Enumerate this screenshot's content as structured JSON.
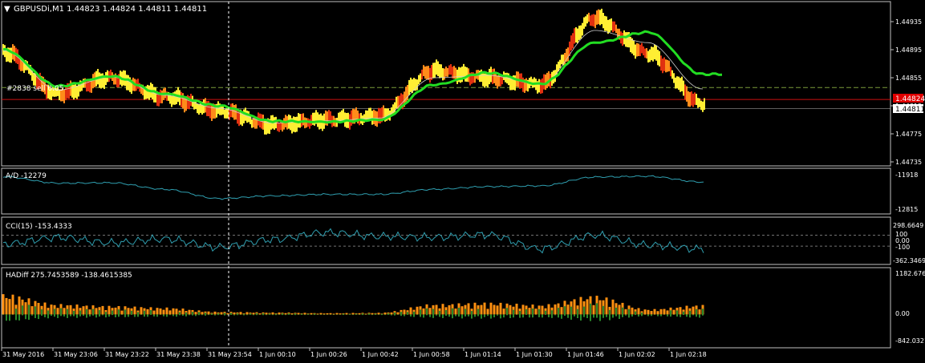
{
  "colors": {
    "background": "#000000",
    "frame": "#c0c0c0",
    "text": "#ffffff",
    "ma_green": "#22dd22",
    "candles_yellow": "#ffee33",
    "candles_orange": "#ff8c1a",
    "candles_red": "#e03010",
    "indicator_line": "#2f9fb0",
    "hist_orange": "#ff9010",
    "hist_green": "#2a8a2a",
    "price_line_red": "#cc1010",
    "price_tag_red": "#e00000",
    "order_line": "#7a9a3a"
  },
  "main": {
    "title_marker": "▼",
    "title": "GBPUSDi,M1  1.44823 1.44824 1.44811 1.44811",
    "order_label": "#2838 sell 0.05",
    "price_ticks": [
      "1.44935",
      "1.44895",
      "1.44855",
      "1.44815",
      "1.44775",
      "1.44735"
    ],
    "current_price_red": "1.44824",
    "current_price_white": "1.44811",
    "order_price": 1.44841
  },
  "ad": {
    "label": "A/D -12279",
    "ticks": [
      "-11918",
      "-12815"
    ]
  },
  "cci": {
    "label": "CCI(15) -153.4333",
    "ticks": [
      "298.6649",
      "100",
      "0.00",
      "-100",
      "-362.3469"
    ],
    "levels": [
      100,
      -100
    ]
  },
  "hadiff": {
    "label": "HADiff 275.7453589 -138.4615385",
    "ticks": [
      "1182.676",
      "0.00",
      "-842.0321"
    ]
  },
  "time_axis": {
    "labels": [
      "31 May 2016",
      "31 May 23:06",
      "31 May 23:22",
      "31 May 23:38",
      "31 May 23:54",
      "1 Jun 00:10",
      "1 Jun 00:26",
      "1 Jun 00:42",
      "1 Jun 00:58",
      "1 Jun 01:14",
      "1 Jun 01:30",
      "1 Jun 01:46",
      "1 Jun 02:02",
      "1 Jun 02:18"
    ]
  },
  "chart_data": [
    {
      "type": "line",
      "title": "GBPUSDi,M1  1.44823 1.44824 1.44811 1.44811",
      "x": [
        "31 May 2016",
        "31 May 23:06",
        "31 May 23:22",
        "31 May 23:38",
        "31 May 23:54",
        "1 Jun 00:10",
        "1 Jun 00:26",
        "1 Jun 00:42",
        "1 Jun 00:58",
        "1 Jun 01:14",
        "1 Jun 01:30",
        "1 Jun 01:46",
        "1 Jun 02:02",
        "1 Jun 02:18"
      ],
      "ylim": [
        1.44725,
        1.44955
      ],
      "series": [
        {
          "name": "",
          "values": [
            1.44892,
            1.44832,
            1.44855,
            1.44828,
            1.44808,
            1.44788,
            1.44795,
            1.448,
            1.44865,
            1.44855,
            1.44845,
            1.4494,
            1.4489,
            1.44818
          ]
        },
        {
          "name": "",
          "values": [
            1.44895,
            1.44843,
            1.44857,
            1.44832,
            1.44815,
            1.44793,
            1.44792,
            1.44795,
            1.44845,
            1.44862,
            1.44846,
            1.44905,
            1.4492,
            1.4486
          ]
        }
      ]
    },
    {
      "type": "line",
      "title": "A/D -12279",
      "x": [
        "31 May 2016",
        "31 May 23:06",
        "31 May 23:22",
        "31 May 23:38",
        "31 May 23:54",
        "1 Jun 00:10",
        "1 Jun 00:26",
        "1 Jun 00:42",
        "1 Jun 00:58",
        "1 Jun 01:14",
        "1 Jun 01:30",
        "1 Jun 01:46",
        "1 Jun 02:02",
        "1 Jun 02:18"
      ],
      "ylim": [
        -12950,
        -11850
      ],
      "series": [
        {
          "name": "",
          "values": [
            -11990,
            -12160,
            -12150,
            -12320,
            -12560,
            -12490,
            -12450,
            -12450,
            -12320,
            -12250,
            -12230,
            -12000,
            -11980,
            -12130
          ]
        }
      ]
    },
    {
      "type": "line",
      "title": "CCI(15) -153.4333",
      "x": [
        "31 May 2016",
        "31 May 23:06",
        "31 May 23:22",
        "31 May 23:38",
        "31 May 23:54",
        "1 Jun 00:10",
        "1 Jun 00:26",
        "1 Jun 00:42",
        "1 Jun 00:58",
        "1 Jun 01:14",
        "1 Jun 01:30",
        "1 Jun 01:46",
        "1 Jun 02:02",
        "1 Jun 02:18"
      ],
      "ylim": [
        -400,
        320
      ],
      "series": [
        {
          "name": "",
          "values": [
            -60,
            60,
            -40,
            30,
            -120,
            20,
            150,
            80,
            60,
            110,
            -150,
            100,
            -80,
            -153
          ]
        }
      ]
    },
    {
      "type": "bar",
      "title": "HADiff 275.7453589 -138.4615385",
      "x": [
        "31 May 2016",
        "31 May 23:06",
        "31 May 23:22",
        "31 May 23:38",
        "31 May 23:54",
        "1 Jun 00:10",
        "1 Jun 00:26",
        "1 Jun 00:42",
        "1 Jun 00:58",
        "1 Jun 01:14",
        "1 Jun 01:30",
        "1 Jun 01:46",
        "1 Jun 02:02",
        "1 Jun 02:18"
      ],
      "ylim": [
        -842.0321,
        1182.676
      ],
      "series": [
        {
          "name": "",
          "values": [
            600,
            300,
            250,
            200,
            80,
            60,
            40,
            50,
            300,
            350,
            280,
            550,
            150,
            275
          ]
        }
      ]
    }
  ]
}
